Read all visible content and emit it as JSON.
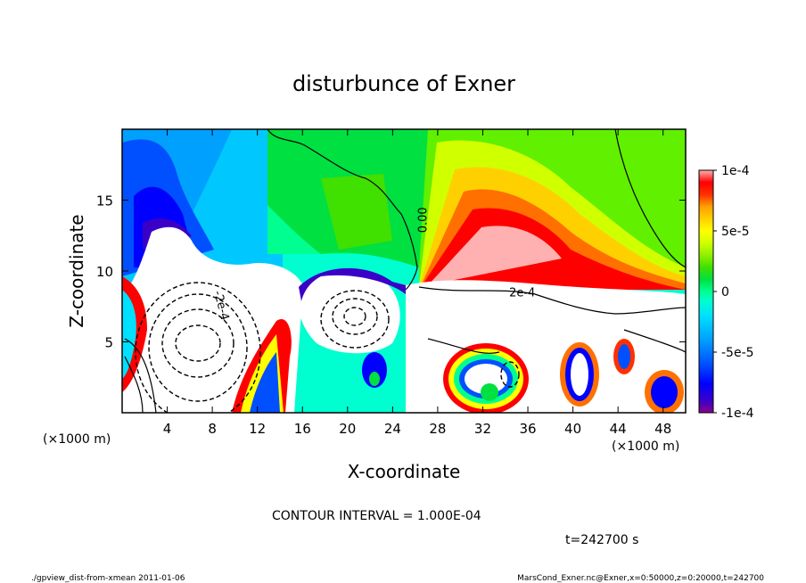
{
  "chart_data": {
    "type": "heatmap",
    "title": "disturbunce of Exner",
    "xlabel": "X-coordinate",
    "ylabel": "Z-coordinate",
    "x_unit": "(×1000 m)",
    "x_unit_left": "(×1000 m)",
    "x_range": [
      0,
      50
    ],
    "y_range": [
      0,
      20
    ],
    "x_ticks": [
      4,
      8,
      12,
      16,
      20,
      24,
      28,
      32,
      36,
      40,
      44,
      48
    ],
    "y_ticks": [
      5,
      10,
      15
    ],
    "colorbar": {
      "range": [
        -0.0001,
        0.0001
      ],
      "tick_labels": [
        "1e-4",
        "5e-5",
        "0",
        "-5e-5",
        "-1e-4"
      ],
      "tick_values": [
        0.0001,
        5e-05,
        0,
        -5e-05,
        -0.0001
      ],
      "colors": [
        "#8b008b",
        "#3a00c8",
        "#0000ff",
        "#0050ff",
        "#00a0ff",
        "#00e0ff",
        "#00ffd0",
        "#00ff90",
        "#00e040",
        "#40e000",
        "#90f000",
        "#d0ff00",
        "#ffff00",
        "#ffd000",
        "#ffa000",
        "#ff7000",
        "#ff3000",
        "#ff0000",
        "#ff7070",
        "#ffb0b0"
      ]
    },
    "contour_labels": [
      {
        "text": "-2e-4",
        "x": 8.5,
        "z": 7.5
      },
      {
        "text": "2e-4",
        "x": 35.5,
        "z": 8.2
      },
      {
        "text": "0.00",
        "x": 27,
        "z": 13.6
      }
    ],
    "contour_interval_label": "CONTOUR INTERVAL = 1.000E-04",
    "time_label": "t=242700 s",
    "footer_left": "./gpview_dist-from-xmean   2011-01-06",
    "footer_right": "MarsCond_Exner.nc@Exner,x=0:50000,z=0:20000,t=242700"
  }
}
